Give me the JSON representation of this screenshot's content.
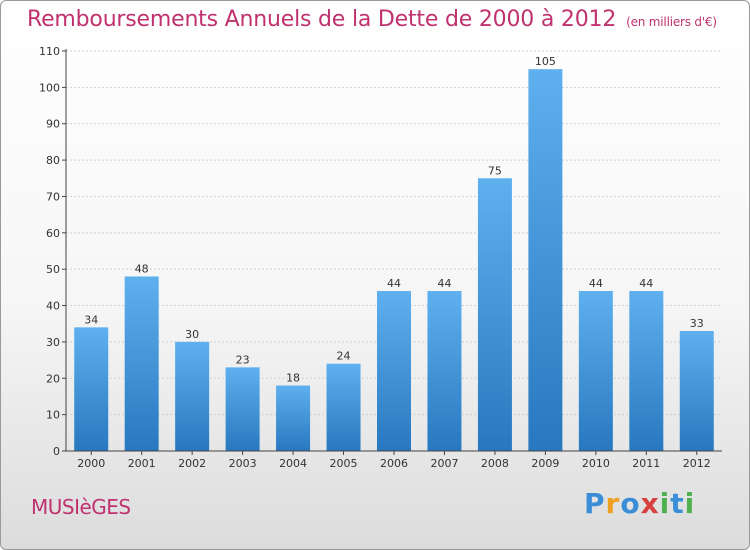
{
  "title": "Remboursements Annuels de la Dette de 2000 à 2012",
  "unit": "(en milliers d'€)",
  "commune": "MUSIèGES",
  "brand": {
    "name": "Proxiti",
    "letters": [
      "P",
      "r",
      "o",
      "x",
      "i",
      "t",
      "i"
    ],
    "colors": [
      "#3a8ed8",
      "#f0a020",
      "#3a8ed8",
      "#d84040",
      "#4fb050",
      "#3a8ed8",
      "#4fb050"
    ]
  },
  "colors": {
    "title": "#c0326f",
    "bar_top": "#5fb0ee",
    "bar_bottom": "#2878c0"
  },
  "chart_data": {
    "type": "bar",
    "categories": [
      "2000",
      "2001",
      "2002",
      "2003",
      "2004",
      "2005",
      "2006",
      "2007",
      "2008",
      "2009",
      "2010",
      "2011",
      "2012"
    ],
    "values": [
      34,
      48,
      30,
      23,
      18,
      24,
      44,
      44,
      75,
      105,
      44,
      44,
      33
    ],
    "ylim": [
      0,
      110
    ],
    "yticks": [
      0,
      10,
      20,
      30,
      40,
      50,
      60,
      70,
      80,
      90,
      100,
      110
    ],
    "grid": true,
    "data_labels": true
  }
}
